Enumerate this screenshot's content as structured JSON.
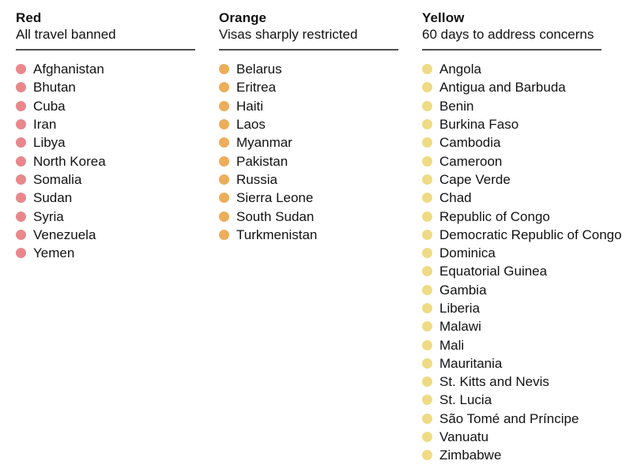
{
  "chart_data": {
    "type": "table",
    "groups": [
      {
        "id": "red",
        "title": "Red",
        "subtitle": "All travel banned",
        "dot_color": "#E8888C",
        "countries": [
          "Afghanistan",
          "Bhutan",
          "Cuba",
          "Iran",
          "Libya",
          "North Korea",
          "Somalia",
          "Sudan",
          "Syria",
          "Venezuela",
          "Yemen"
        ]
      },
      {
        "id": "orange",
        "title": "Orange",
        "subtitle": "Visas sharply restricted",
        "dot_color": "#ECAE5A",
        "countries": [
          "Belarus",
          "Eritrea",
          "Haiti",
          "Laos",
          "Myanmar",
          "Pakistan",
          "Russia",
          "Sierra Leone",
          "South Sudan",
          "Turkmenistan"
        ]
      },
      {
        "id": "yellow",
        "title": "Yellow",
        "subtitle": "60 days to address concerns",
        "dot_color": "#EFDB85",
        "countries": [
          "Angola",
          "Antigua and Barbuda",
          "Benin",
          "Burkina Faso",
          "Cambodia",
          "Cameroon",
          "Cape Verde",
          "Chad",
          "Republic of Congo",
          "Democratic Republic of Congo",
          "Dominica",
          "Equatorial Guinea",
          "Gambia",
          "Liberia",
          "Malawi",
          "Mali",
          "Mauritania",
          "St. Kitts and Nevis",
          "St. Lucia",
          "São Tomé and Príncipe",
          "Vanuatu",
          "Zimbabwe"
        ]
      }
    ],
    "layout": {
      "columns": 3,
      "text_color": "#121212",
      "rule_color": "#4d4d4d",
      "background": "#ffffff"
    }
  }
}
